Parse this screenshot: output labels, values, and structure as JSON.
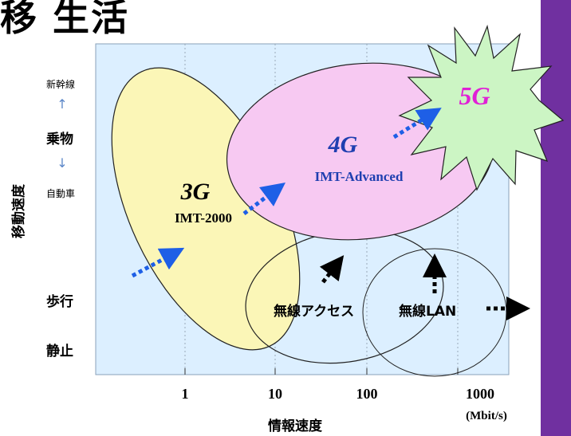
{
  "slide": {
    "title": "⁠移 生活"
  },
  "axes": {
    "y_title": "移動速度",
    "x_title": "情報速度",
    "y_top": "新幹線",
    "y_up_arrow": "↑",
    "y_vehicle": "乗物",
    "y_down_arrow": "↓",
    "y_car": "自動車",
    "y_walk": "歩行",
    "y_still": "静止",
    "x_ticks": [
      "1",
      "10",
      "100",
      "1000"
    ],
    "x_unit": "(Mbit/s)"
  },
  "regions": {
    "g3": {
      "name": "3G",
      "standard": "IMT-2000",
      "color": "#fbf6b7"
    },
    "g4": {
      "name": "4G",
      "standard": "IMT-Advanced",
      "color": "#f7c9f2"
    },
    "g5": {
      "name": "5G",
      "color": "#ccf5c4"
    },
    "wireless_access": "無線アクセス",
    "wireless_lan": "無線LAN"
  },
  "colors": {
    "plot_bg": "#dcefff",
    "arrow_blue": "#1e5fe6",
    "label_4g": "#1f3fb0",
    "label_5g": "#e020d6",
    "sidebar": "#7030a0"
  }
}
